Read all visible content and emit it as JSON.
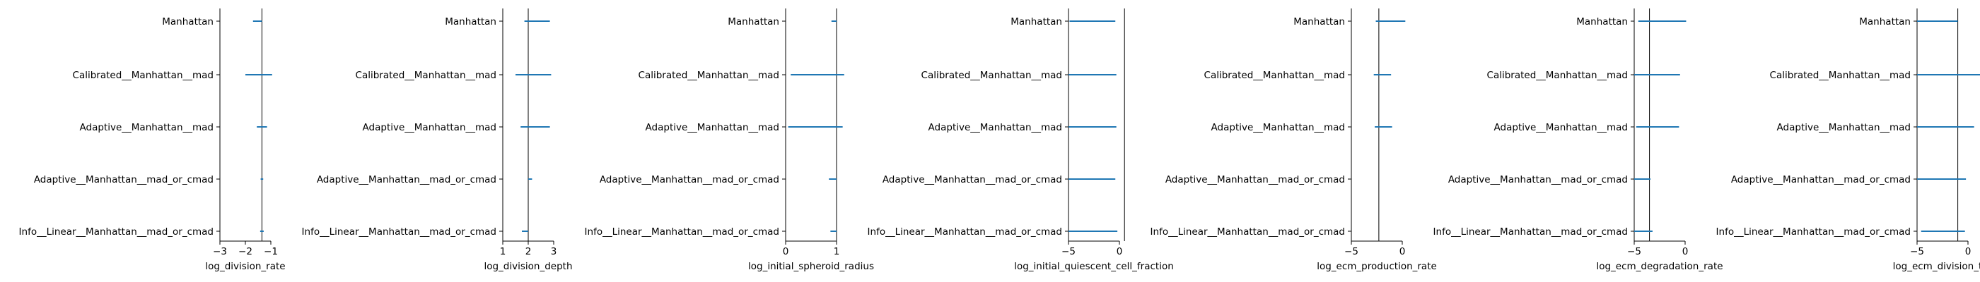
{
  "colors": {
    "interval": "#1f77b4",
    "axis": "#000000",
    "reference": "#000000"
  },
  "chart_data": [
    {
      "type": "interval",
      "xlabel": "log_division_rate",
      "xlim": [
        -3,
        -1
      ],
      "xticks": [
        -3,
        -2,
        -1
      ],
      "reference_line": -1.35,
      "categories": [
        "Manhattan",
        "Calibrated__Manhattan__mad",
        "Adaptive__Manhattan__mad",
        "Adaptive__Manhattan__mad_or_cmad",
        "Info__Linear__Manhattan__mad_or_cmad"
      ],
      "intervals": [
        [
          -1.7,
          -1.35
        ],
        [
          -2.0,
          -0.95
        ],
        [
          -1.55,
          -1.15
        ],
        [
          -1.4,
          -1.3
        ],
        [
          -1.42,
          -1.28
        ]
      ]
    },
    {
      "type": "interval",
      "xlabel": "log_division_depth",
      "xlim": [
        1,
        3
      ],
      "xticks": [
        1,
        2,
        3
      ],
      "reference_line": 2.0,
      "categories": [
        "Manhattan",
        "Calibrated__Manhattan__mad",
        "Adaptive__Manhattan__mad",
        "Adaptive__Manhattan__mad_or_cmad",
        "Info__Linear__Manhattan__mad_or_cmad"
      ],
      "intervals": [
        [
          1.85,
          2.85
        ],
        [
          1.5,
          2.9
        ],
        [
          1.7,
          2.85
        ],
        [
          2.0,
          2.15
        ],
        [
          1.75,
          2.0
        ]
      ]
    },
    {
      "type": "interval",
      "xlabel": "log_initial_spheroid_radius",
      "xlim": [
        0,
        1
      ],
      "xticks": [
        0,
        1
      ],
      "reference_line": 1.0,
      "categories": [
        "Manhattan",
        "Calibrated__Manhattan__mad",
        "Adaptive__Manhattan__mad",
        "Adaptive__Manhattan__mad_or_cmad",
        "Info__Linear__Manhattan__mad_or_cmad"
      ],
      "intervals": [
        [
          0.9,
          1.0
        ],
        [
          0.1,
          1.15
        ],
        [
          0.05,
          1.12
        ],
        [
          0.85,
          1.0
        ],
        [
          0.88,
          1.0
        ]
      ]
    },
    {
      "type": "interval",
      "xlabel": "log_initial_quiescent_cell_fraction",
      "xlim": [
        -5,
        0
      ],
      "xticks": [
        -5,
        0
      ],
      "reference_line": 0.5,
      "categories": [
        "Manhattan",
        "Calibrated__Manhattan__mad",
        "Adaptive__Manhattan__mad",
        "Adaptive__Manhattan__mad_or_cmad",
        "Info__Linear__Manhattan__mad_or_cmad"
      ],
      "intervals": [
        [
          -4.9,
          -0.4
        ],
        [
          -5.0,
          -0.3
        ],
        [
          -5.0,
          -0.3
        ],
        [
          -5.0,
          -0.4
        ],
        [
          -5.0,
          -0.2
        ]
      ]
    },
    {
      "type": "interval",
      "xlabel": "log_ecm_production_rate",
      "xlim": [
        -5,
        0
      ],
      "xticks": [
        -5,
        0
      ],
      "reference_line": -2.3,
      "categories": [
        "Manhattan",
        "Calibrated__Manhattan__mad",
        "Adaptive__Manhattan__mad",
        "Adaptive__Manhattan__mad_or_cmad",
        "Info__Linear__Manhattan__mad_or_cmad"
      ],
      "intervals": [
        [
          -2.6,
          0.3
        ],
        [
          -2.8,
          -1.1
        ],
        [
          -2.7,
          -1.0
        ],
        null,
        null
      ]
    },
    {
      "type": "interval",
      "xlabel": "log_ecm_degradation_rate",
      "xlim": [
        -5,
        0
      ],
      "xticks": [
        -5,
        0
      ],
      "reference_line": -3.5,
      "categories": [
        "Manhattan",
        "Calibrated__Manhattan__mad",
        "Adaptive__Manhattan__mad",
        "Adaptive__Manhattan__mad_or_cmad",
        "Info__Linear__Manhattan__mad_or_cmad"
      ],
      "intervals": [
        [
          -4.6,
          0.1
        ],
        [
          -5.0,
          -0.5
        ],
        [
          -4.8,
          -0.6
        ],
        [
          -5.0,
          -3.4
        ],
        [
          -5.0,
          -3.2
        ]
      ]
    },
    {
      "type": "interval",
      "xlabel": "log_ecm_division_thr",
      "xlim": [
        -5,
        0
      ],
      "xticks": [
        -5,
        0
      ],
      "reference_line": -1.0,
      "categories": [
        "Manhattan",
        "Calibrated__Manhattan__mad",
        "Adaptive__Manhattan__mad",
        "Adaptive__Manhattan__mad_or_cmad",
        "Info__Linear__Manhattan__mad_or_cmad"
      ],
      "intervals": [
        [
          -5.0,
          -1.0
        ],
        [
          -5.0,
          1.5
        ],
        [
          -5.0,
          0.6
        ],
        [
          -5.0,
          -0.2
        ],
        [
          -4.6,
          -0.3
        ]
      ]
    }
  ]
}
